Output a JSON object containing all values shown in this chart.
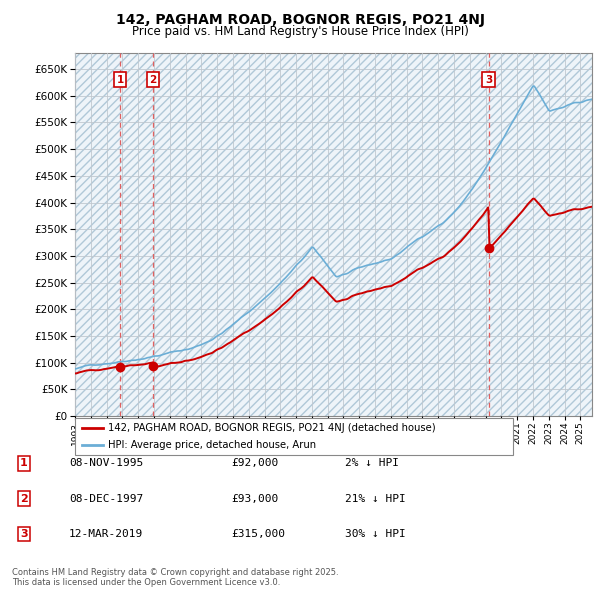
{
  "title_line1": "142, PAGHAM ROAD, BOGNOR REGIS, PO21 4NJ",
  "title_line2": "Price paid vs. HM Land Registry's House Price Index (HPI)",
  "ylim": [
    0,
    680000
  ],
  "xlim_start": 1993,
  "xlim_end": 2025.75,
  "sale_dates_num": [
    1995.86,
    1997.94,
    2019.19
  ],
  "sale_prices": [
    92000,
    93000,
    315000
  ],
  "sale_labels": [
    "1",
    "2",
    "3"
  ],
  "legend_entries": [
    "142, PAGHAM ROAD, BOGNOR REGIS, PO21 4NJ (detached house)",
    "HPI: Average price, detached house, Arun"
  ],
  "footnote": "Contains HM Land Registry data © Crown copyright and database right 2025.\nThis data is licensed under the Open Government Licence v3.0.",
  "table_rows": [
    [
      "1",
      "08-NOV-1995",
      "£92,000",
      "2% ↓ HPI"
    ],
    [
      "2",
      "08-DEC-1997",
      "£93,000",
      "21% ↓ HPI"
    ],
    [
      "3",
      "12-MAR-2019",
      "£315,000",
      "30% ↓ HPI"
    ]
  ],
  "hpi_color": "#6baed6",
  "sale_color": "#cc0000",
  "vline_color": "#e06060",
  "bg_hatch_color": "#dce8f0",
  "bg_fill_color": "#eef4f9"
}
